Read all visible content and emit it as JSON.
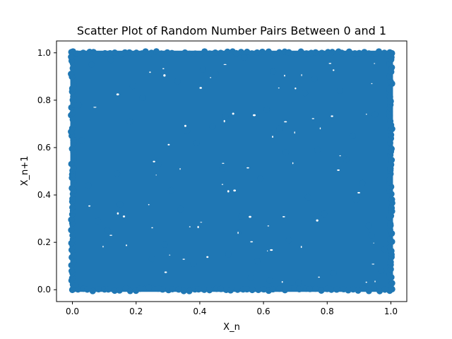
{
  "chart_data": {
    "type": "scatter",
    "title": "Scatter Plot of Random Number Pairs Between 0 and 1",
    "xlabel": "X_n",
    "ylabel": "X_n+1",
    "xlim": [
      -0.05,
      1.05
    ],
    "ylim": [
      -0.05,
      1.05
    ],
    "x_ticks": [
      "0.0",
      "0.2",
      "0.4",
      "0.6",
      "0.8",
      "1.0"
    ],
    "y_ticks": [
      "0.0",
      "0.2",
      "0.4",
      "0.6",
      "0.8",
      "1.0"
    ],
    "grid": false,
    "point_color": "#1f77b4",
    "series": [
      {
        "x": [
          0.01,
          0.12,
          0.25,
          0.33,
          0.47,
          0.52,
          0.61,
          0.74,
          0.88,
          0.97,
          0.05,
          0.18,
          0.29,
          0.41,
          0.56,
          0.67,
          0.79,
          0.84,
          0.93,
          0.99,
          0.03,
          0.15,
          0.22,
          0.38,
          0.44,
          0.59,
          0.63,
          0.71,
          0.86,
          0.95,
          0.08,
          0.19,
          0.31,
          0.36,
          0.49,
          0.54,
          0.68,
          0.77,
          0.82,
          0.91,
          0.02,
          0.11,
          0.27,
          0.34,
          0.45,
          0.58,
          0.65,
          0.73,
          0.89,
          0.98,
          0.06,
          0.14,
          0.24,
          0.39,
          0.48,
          0.53,
          0.62,
          0.76,
          0.85,
          0.94
        ],
        "y": [
          0.02,
          0.97,
          0.13,
          0.88,
          0.51,
          0.24,
          0.76,
          0.39,
          0.65,
          0.08,
          0.44,
          0.71,
          0.19,
          0.93,
          0.05,
          0.58,
          0.32,
          0.84,
          0.27,
          0.99,
          0.63,
          0.36,
          0.81,
          0.11,
          0.69,
          0.47,
          0.92,
          0.03,
          0.55,
          0.74,
          0.29,
          0.86,
          0.42,
          0.67,
          0.15,
          0.98,
          0.21,
          0.59,
          0.07,
          0.45,
          0.78,
          0.25,
          0.53,
          0.34,
          0.91,
          0.12,
          0.68,
          0.83,
          0.38,
          0.17,
          0.95,
          0.49,
          0.01,
          0.62,
          0.73,
          0.31,
          0.04,
          0.89,
          0.56,
          0.23
        ]
      }
    ]
  }
}
